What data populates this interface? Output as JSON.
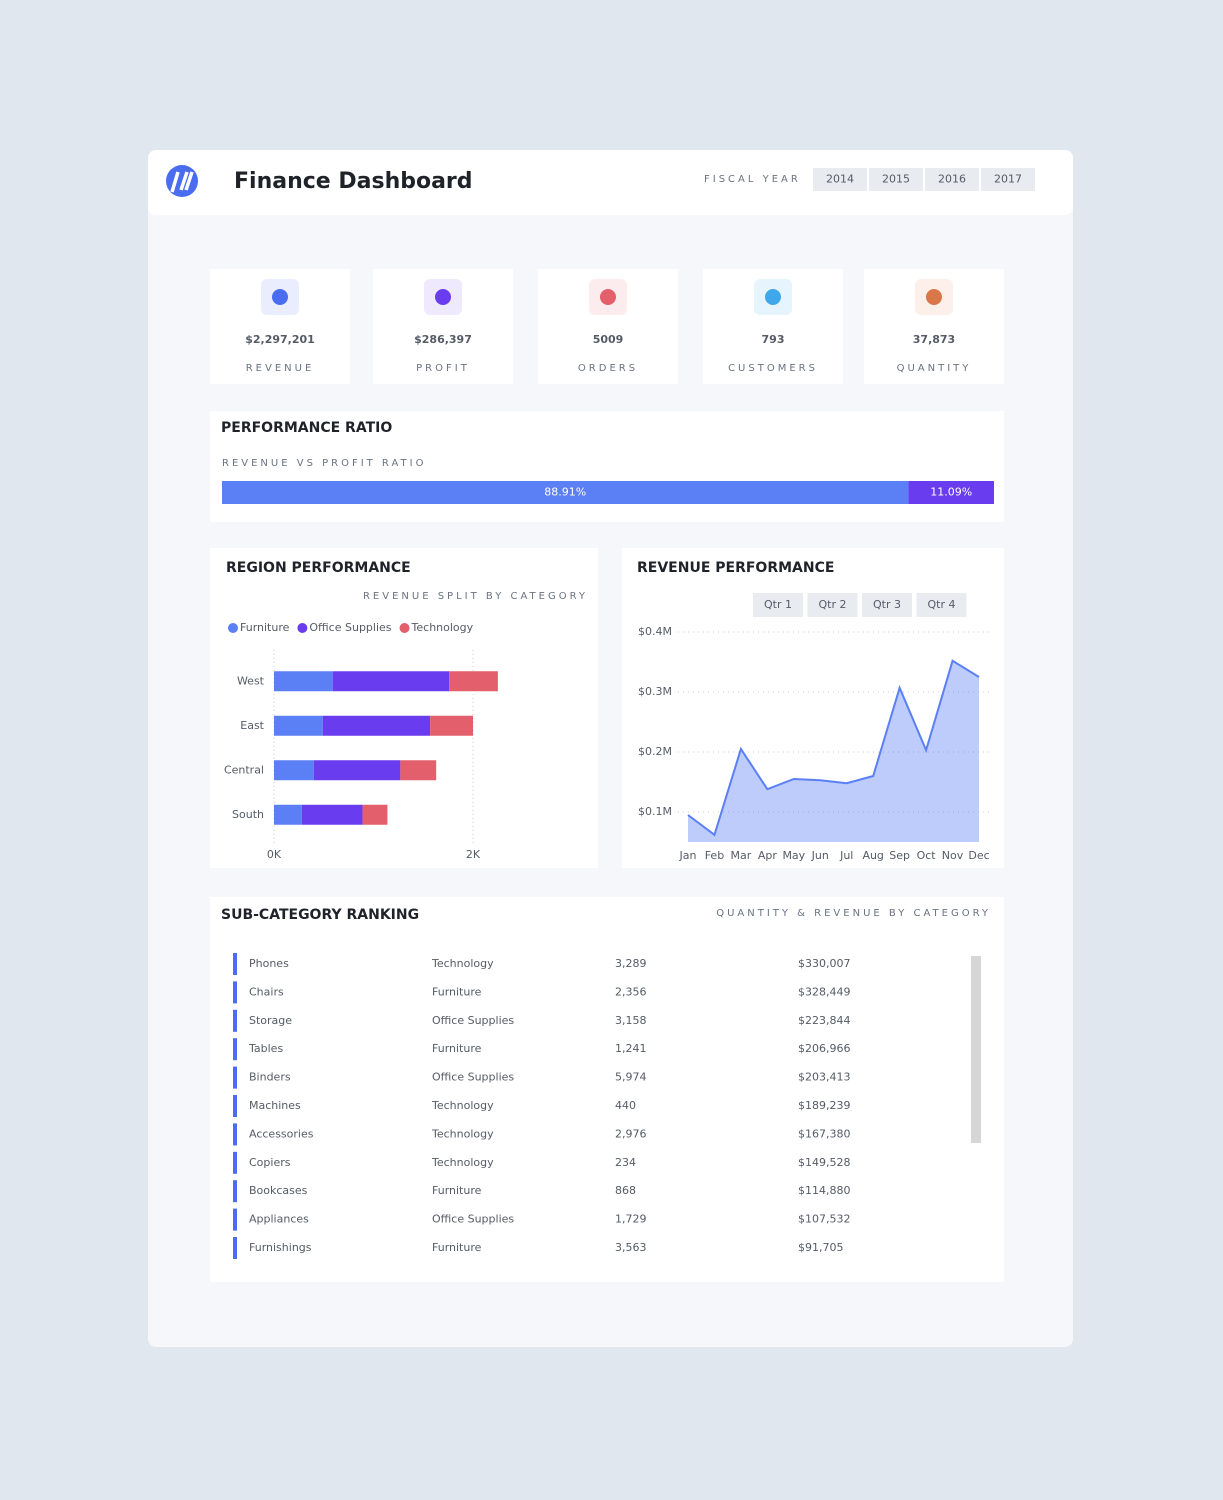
{
  "header": {
    "title": "Finance Dashboard",
    "filter_label": "FISCAL YEAR",
    "years": [
      "2014",
      "2015",
      "2016",
      "2017"
    ]
  },
  "kpis": [
    {
      "value": "$2,297,201",
      "label": "REVENUE"
    },
    {
      "value": "$286,397",
      "label": "PROFIT"
    },
    {
      "value": "5009",
      "label": "ORDERS"
    },
    {
      "value": "793",
      "label": "CUSTOMERS"
    },
    {
      "value": "37,873",
      "label": "QUANTITY"
    }
  ],
  "chart_data": [
    {
      "type": "stacked_bar",
      "title": "PERFORMANCE RATIO",
      "subtitle": "REVENUE VS PROFIT RATIO",
      "xlim": [
        0,
        100
      ],
      "series": [
        {
          "color": "#5b7ff5",
          "values": [
            88.91
          ],
          "value_labels": [
            "88.91%"
          ]
        },
        {
          "color": "#6a3cf0",
          "values": [
            11.09
          ],
          "value_labels": [
            "11.09%"
          ]
        }
      ]
    },
    {
      "type": "stacked_bar",
      "title": "REGION PERFORMANCE",
      "subtitle": "REVENUE SPLIT BY CATEGORY",
      "categories": [
        "West",
        "East",
        "Central",
        "South"
      ],
      "series": [
        {
          "name": "Furniture",
          "color": "#5b7ff5",
          "values": [
            590,
            490,
            400,
            280
          ]
        },
        {
          "name": "Office Supplies",
          "color": "#6a3cf0",
          "values": [
            1170,
            1080,
            870,
            610
          ]
        },
        {
          "name": "Technology",
          "color": "#e35f6b",
          "values": [
            490,
            430,
            360,
            250
          ]
        }
      ],
      "xlim": [
        0,
        3000
      ],
      "xticks": [
        {
          "value": 0,
          "label": "0K"
        },
        {
          "value": 2000,
          "label": "2K"
        }
      ],
      "grid": true
    },
    {
      "type": "area",
      "title": "REVENUE PERFORMANCE",
      "buttons": [
        "Qtr 1",
        "Qtr 2",
        "Qtr 3",
        "Qtr 4"
      ],
      "categories": [
        "Jan",
        "Feb",
        "Mar",
        "Apr",
        "May",
        "Jun",
        "Jul",
        "Aug",
        "Sep",
        "Oct",
        "Nov",
        "Dec"
      ],
      "values": [
        95000,
        62000,
        205000,
        138000,
        155000,
        153000,
        148000,
        160000,
        307000,
        203000,
        352000,
        325000
      ],
      "color": "#5b7ff5",
      "ylim": [
        50000,
        400000
      ],
      "yticks": [
        {
          "value": 100000,
          "label": "$0.1M"
        },
        {
          "value": 200000,
          "label": "$0.2M"
        },
        {
          "value": 300000,
          "label": "$0.3M"
        },
        {
          "value": 400000,
          "label": "$0.4M"
        }
      ],
      "grid": true
    }
  ],
  "table": {
    "title": "SUB-CATEGORY RANKING",
    "subtitle": "QUANTITY & REVENUE BY CATEGORY",
    "rows": [
      [
        "Phones",
        "Technology",
        "3,289",
        "$330,007"
      ],
      [
        "Chairs",
        "Furniture",
        "2,356",
        "$328,449"
      ],
      [
        "Storage",
        "Office Supplies",
        "3,158",
        "$223,844"
      ],
      [
        "Tables",
        "Furniture",
        "1,241",
        "$206,966"
      ],
      [
        "Binders",
        "Office Supplies",
        "5,974",
        "$203,413"
      ],
      [
        "Machines",
        "Technology",
        "440",
        "$189,239"
      ],
      [
        "Accessories",
        "Technology",
        "2,976",
        "$167,380"
      ],
      [
        "Copiers",
        "Technology",
        "234",
        "$149,528"
      ],
      [
        "Bookcases",
        "Furniture",
        "868",
        "$114,880"
      ],
      [
        "Appliances",
        "Office Supplies",
        "1,729",
        "$107,532"
      ],
      [
        "Furnishings",
        "Furniture",
        "3,563",
        "$91,705"
      ]
    ]
  }
}
